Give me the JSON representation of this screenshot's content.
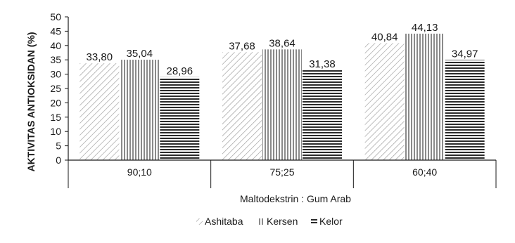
{
  "chart_data": {
    "type": "bar",
    "xlabel": "Maltodekstrin : Gum Arab",
    "ylabel": "AKTIVITAS ANTIOKSIDAN (%)",
    "categories": [
      "90;10",
      "75;25",
      "60;40"
    ],
    "ylim": [
      0,
      50
    ],
    "ytick_step": 5,
    "grid": false,
    "legend_position": "bottom",
    "series": [
      {
        "name": "Ashitaba",
        "values": [
          33.8,
          37.68,
          40.84
        ],
        "labels": [
          "33,80",
          "37,68",
          "40,84"
        ],
        "pattern": "diagonal-hatch"
      },
      {
        "name": "Kersen",
        "values": [
          35.04,
          38.64,
          44.13
        ],
        "labels": [
          "35,04",
          "38,64",
          "44,13"
        ],
        "pattern": "vertical-stripes"
      },
      {
        "name": "Kelor",
        "values": [
          28.96,
          31.38,
          34.97
        ],
        "labels": [
          "28,96",
          "31,38",
          "34,97"
        ],
        "pattern": "horizontal-stripes"
      }
    ]
  }
}
